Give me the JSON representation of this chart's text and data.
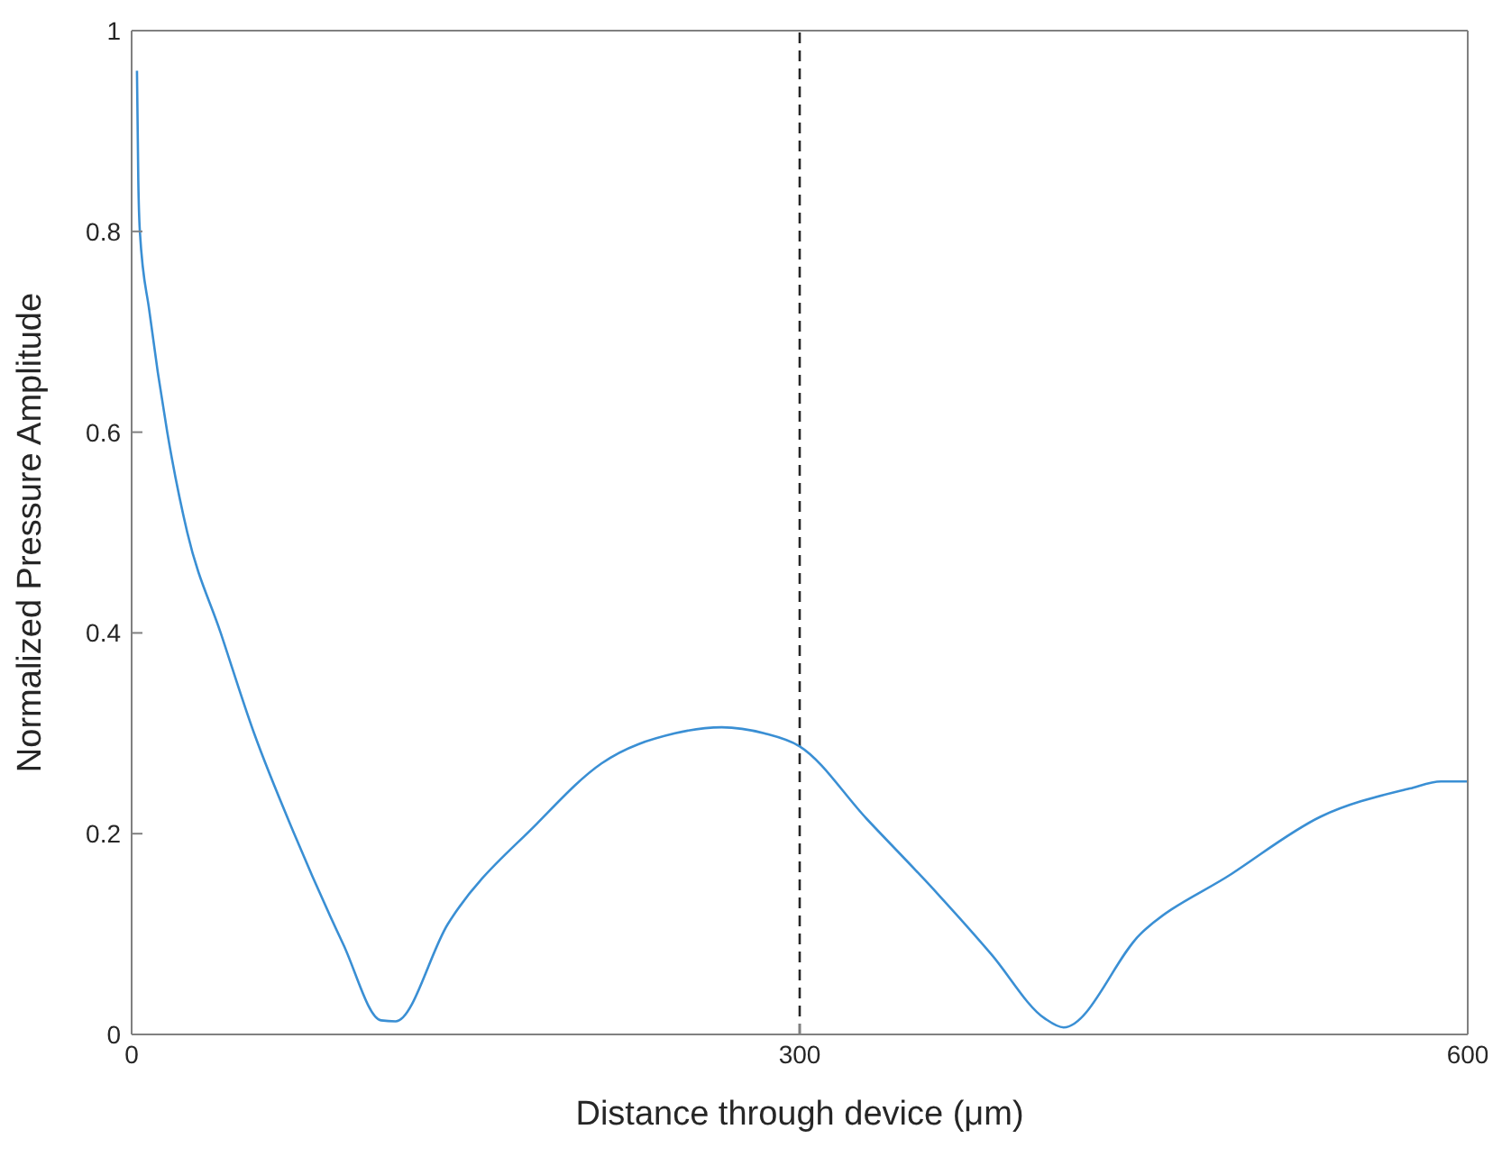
{
  "chart_data": {
    "type": "line",
    "xlabel": "Distance through device (μm)",
    "ylabel": "Normalized Pressure Amplitude",
    "x": [
      2.4,
      3,
      3.7,
      8,
      16,
      25,
      40,
      55,
      73,
      95,
      112,
      118.5,
      142,
      182,
      211,
      244,
      265,
      284,
      300,
      330,
      362,
      386,
      410,
      418.5,
      453,
      494,
      534,
      574,
      588,
      600
    ],
    "series": [
      {
        "color": "#3a8fd4",
        "values": [
          0.96,
          0.85,
          0.8,
          0.72,
          0.6,
          0.5,
          0.4,
          0.3,
          0.2,
          0.09,
          0.014,
          0.013,
          0.11,
          0.21,
          0.27,
          0.3,
          0.306,
          0.3,
          0.287,
          0.215,
          0.14,
          0.08,
          0.016,
          0.007,
          0.1,
          0.16,
          0.217,
          0.245,
          0.252,
          0.252
        ]
      }
    ],
    "xlim": [
      0,
      600
    ],
    "xticks": [
      0,
      300,
      600
    ],
    "ylim": [
      0,
      1
    ],
    "yticks": [
      0,
      0.2,
      0.4,
      0.6,
      0.8,
      1
    ],
    "ref_lines": [
      {
        "axis": "x",
        "value": 300,
        "color": "#262626",
        "line_style": "dashed"
      }
    ],
    "grid": false,
    "legend": false,
    "marker": "none",
    "line_style": "solid"
  }
}
